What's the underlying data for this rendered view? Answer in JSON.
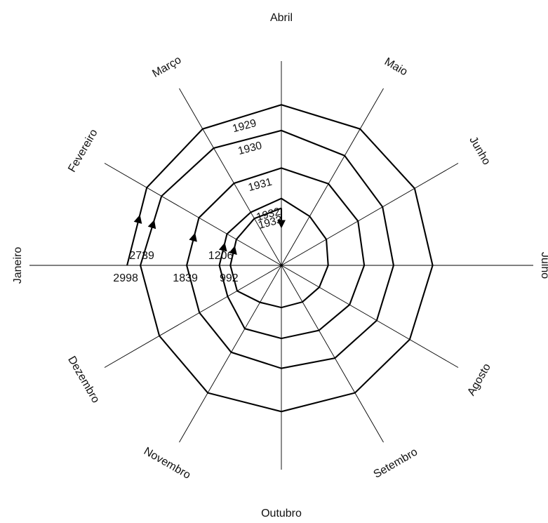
{
  "chart_data": {
    "type": "radar-spiral",
    "months": [
      "Janeiro",
      "Fevereiro",
      "Março",
      "Abril",
      "Maio",
      "Junho",
      "Julho",
      "Agosto",
      "Setembro",
      "Outubro",
      "Novembro",
      "Dezembro"
    ],
    "series": [
      {
        "name": "1929",
        "values": [
          2998,
          3020,
          3060,
          3120,
          3060,
          2990,
          2940,
          2880,
          2860,
          2840,
          2860,
          2739
        ]
      },
      {
        "name": "1930",
        "values": [
          2739,
          2690,
          2630,
          2620,
          2460,
          2270,
          2180,
          2140,
          2080,
          2000,
          1950,
          1839
        ]
      },
      {
        "name": "1931",
        "values": [
          1839,
          1850,
          1840,
          1890,
          1830,
          1720,
          1610,
          1530,
          1460,
          1420,
          1420,
          1206
        ]
      },
      {
        "name": "1932",
        "values": [
          1206,
          1220,
          1190,
          1300,
          1100,
          1010,
          910,
          850,
          820,
          820,
          830,
          992
        ]
      },
      {
        "name": "1933",
        "values": [
          992,
          1010,
          1050,
          1110
        ]
      }
    ],
    "value_labels": [
      {
        "text": "2998"
      },
      {
        "text": "2739"
      },
      {
        "text": "1839"
      },
      {
        "text": "1206"
      },
      {
        "text": "992"
      }
    ],
    "rmax": 3300
  }
}
